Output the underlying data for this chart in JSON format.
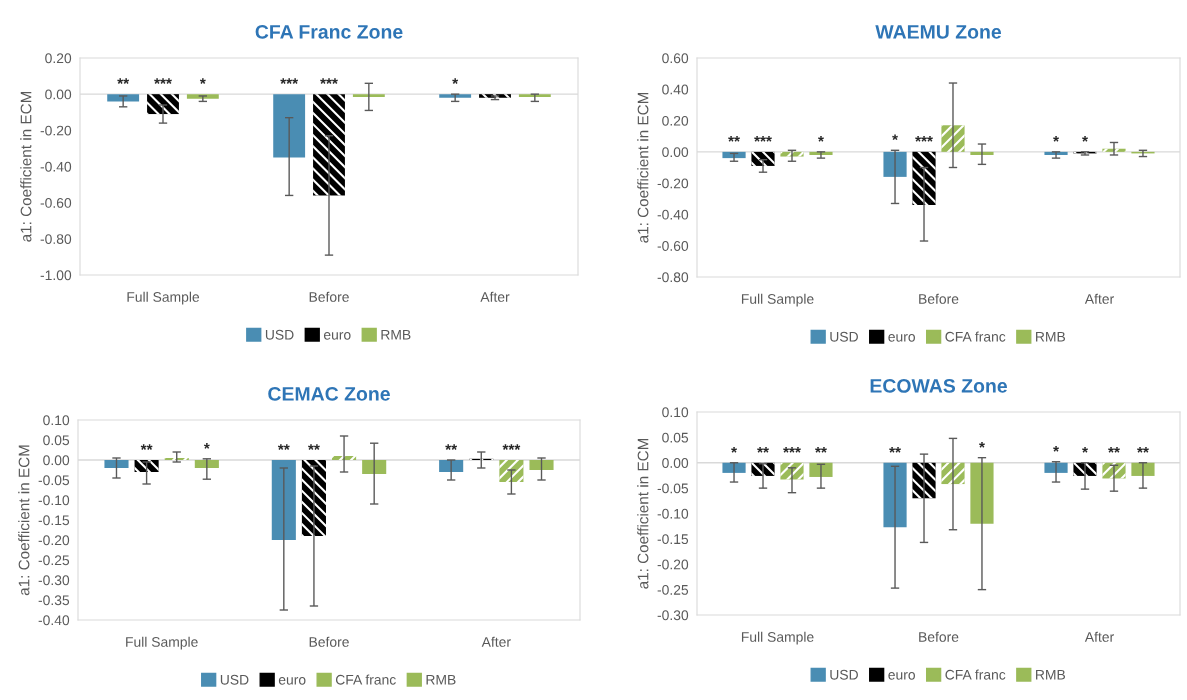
{
  "chart_data": [
    {
      "type": "bar",
      "title": "CFA Franc Zone",
      "ylabel": "a1: Coefficient in ECM",
      "categories": [
        "Full Sample",
        "Before",
        "After"
      ],
      "legend": "bottom",
      "ylim": [
        -1.0,
        0.2
      ],
      "yticks": [
        {
          "value": 0.2,
          "label": "0.20"
        },
        {
          "value": 0,
          "label": "0.00"
        },
        {
          "value": -0.2,
          "label": "-0.20"
        },
        {
          "value": -0.4,
          "label": "-0.40"
        },
        {
          "value": -0.6,
          "label": "-0.60"
        },
        {
          "value": -0.8,
          "label": "-0.80"
        },
        {
          "value": -1.0,
          "label": "-1.00"
        }
      ],
      "ref_lines": [
        {
          "axis": "y",
          "value": 0,
          "color": "#d9d9d9"
        }
      ],
      "series": [
        {
          "name": "USD",
          "color": "#4a8db3",
          "values": [
            -0.04,
            -0.35,
            -0.02
          ],
          "errors": [
            [
              -0.07,
              -0.01
            ],
            [
              -0.56,
              -0.13
            ],
            [
              -0.04,
              0.0
            ]
          ],
          "value_labels": [
            "**",
            "***",
            "*"
          ]
        },
        {
          "name": "euro",
          "color": "#000000",
          "values": [
            -0.11,
            -0.56,
            -0.02
          ],
          "errors": [
            [
              -0.16,
              -0.06
            ],
            [
              -0.89,
              -0.23
            ],
            [
              -0.03,
              -0.01
            ]
          ],
          "value_labels": [
            "***",
            "***",
            null
          ]
        },
        {
          "name": "RMB",
          "color": "#9bbb59",
          "values": [
            -0.025,
            -0.015,
            -0.015
          ],
          "errors": [
            [
              -0.04,
              -0.01
            ],
            [
              -0.09,
              0.06
            ],
            [
              -0.04,
              0.0
            ]
          ],
          "value_labels": [
            "*",
            null,
            null
          ]
        }
      ]
    },
    {
      "type": "bar",
      "title": "WAEMU Zone",
      "ylabel": "a1: Coefficient in ECM",
      "categories": [
        "Full Sample",
        "Before",
        "After"
      ],
      "legend": "bottom",
      "ylim": [
        -0.8,
        0.6
      ],
      "yticks": [
        {
          "value": 0.6,
          "label": "0.60"
        },
        {
          "value": 0.4,
          "label": "0.40"
        },
        {
          "value": 0.2,
          "label": "0.20"
        },
        {
          "value": 0,
          "label": "0.00"
        },
        {
          "value": -0.2,
          "label": "-0.20"
        },
        {
          "value": -0.4,
          "label": "-0.40"
        },
        {
          "value": -0.6,
          "label": "-0.60"
        },
        {
          "value": -0.8,
          "label": "-0.80"
        }
      ],
      "ref_lines": [
        {
          "axis": "y",
          "value": 0,
          "color": "#d9d9d9"
        }
      ],
      "series": [
        {
          "name": "USD",
          "color": "#4a8db3",
          "values": [
            -0.04,
            -0.16,
            -0.02
          ],
          "errors": [
            [
              -0.06,
              -0.01
            ],
            [
              -0.33,
              0.01
            ],
            [
              -0.04,
              0.0
            ]
          ],
          "value_labels": [
            "**",
            "*",
            "*"
          ]
        },
        {
          "name": "euro",
          "color": "#000000",
          "values": [
            -0.09,
            -0.34,
            -0.01
          ],
          "errors": [
            [
              -0.13,
              -0.05
            ],
            [
              -0.57,
              -0.1
            ],
            [
              -0.02,
              0.0
            ]
          ],
          "value_labels": [
            "***",
            "***",
            "*"
          ]
        },
        {
          "name": "CFA franc",
          "color": "#9bbb59",
          "values": [
            -0.03,
            0.17,
            0.02
          ],
          "errors": [
            [
              -0.06,
              0.01
            ],
            [
              -0.1,
              0.44
            ],
            [
              -0.02,
              0.06
            ]
          ],
          "value_labels": [
            null,
            null,
            null
          ]
        },
        {
          "name": "RMB",
          "color": "#9bbb59",
          "values": [
            -0.02,
            -0.02,
            -0.01
          ],
          "errors": [
            [
              -0.04,
              0.0
            ],
            [
              -0.08,
              0.05
            ],
            [
              -0.03,
              0.01
            ]
          ],
          "value_labels": [
            "*",
            null,
            null
          ]
        }
      ]
    },
    {
      "type": "bar",
      "title": "CEMAC Zone",
      "ylabel": "a1: Coefficient in ECM",
      "categories": [
        "Full Sample",
        "Before",
        "After"
      ],
      "legend": "bottom",
      "ylim": [
        -0.4,
        0.1
      ],
      "yticks": [
        {
          "value": 0.1,
          "label": "0.10"
        },
        {
          "value": 0.05,
          "label": "0.05"
        },
        {
          "value": 0,
          "label": "0.00"
        },
        {
          "value": -0.05,
          "label": "-0.05"
        },
        {
          "value": -0.1,
          "label": "-0.10"
        },
        {
          "value": -0.15,
          "label": "-0.15"
        },
        {
          "value": -0.2,
          "label": "-0.20"
        },
        {
          "value": -0.25,
          "label": "-0.25"
        },
        {
          "value": -0.3,
          "label": "-0.30"
        },
        {
          "value": -0.35,
          "label": "-0.35"
        },
        {
          "value": -0.4,
          "label": "-0.40"
        }
      ],
      "ref_lines": [
        {
          "axis": "y",
          "value": 0,
          "color": "#d9d9d9"
        }
      ],
      "series": [
        {
          "name": "USD",
          "color": "#4a8db3",
          "values": [
            -0.02,
            -0.2,
            -0.03
          ],
          "errors": [
            [
              -0.045,
              0.005
            ],
            [
              -0.375,
              -0.02
            ],
            [
              -0.05,
              0.0
            ]
          ],
          "value_labels": [
            null,
            "**",
            "**"
          ]
        },
        {
          "name": "euro",
          "color": "#000000",
          "values": [
            -0.03,
            -0.19,
            0.003
          ],
          "errors": [
            [
              -0.06,
              -0.005
            ],
            [
              -0.365,
              -0.015
            ],
            [
              -0.02,
              0.02
            ]
          ],
          "value_labels": [
            "**",
            "**",
            null
          ]
        },
        {
          "name": "CFA franc",
          "color": "#9bbb59",
          "values": [
            0.005,
            0.01,
            -0.055
          ],
          "errors": [
            [
              -0.005,
              0.02
            ],
            [
              -0.03,
              0.06
            ],
            [
              -0.085,
              -0.025
            ]
          ],
          "value_labels": [
            null,
            null,
            "***"
          ]
        },
        {
          "name": "RMB",
          "color": "#9bbb59",
          "values": [
            -0.02,
            -0.035,
            -0.025
          ],
          "errors": [
            [
              -0.048,
              0.003
            ],
            [
              -0.11,
              0.042
            ],
            [
              -0.05,
              0.005
            ]
          ],
          "value_labels": [
            "*",
            null,
            null
          ]
        }
      ]
    },
    {
      "type": "bar",
      "title": "ECOWAS Zone",
      "ylabel": "a1: Coefficient in ECM",
      "categories": [
        "Full Sample",
        "Before",
        "After"
      ],
      "legend": "bottom",
      "ylim": [
        -0.3,
        0.1
      ],
      "yticks": [
        {
          "value": 0.1,
          "label": "0.10"
        },
        {
          "value": 0.05,
          "label": "0.05"
        },
        {
          "value": 0,
          "label": "0.00"
        },
        {
          "value": -0.05,
          "label": "-0.05"
        },
        {
          "value": -0.1,
          "label": "-0.10"
        },
        {
          "value": -0.15,
          "label": "-0.15"
        },
        {
          "value": -0.2,
          "label": "-0.20"
        },
        {
          "value": -0.25,
          "label": "-0.25"
        },
        {
          "value": -0.3,
          "label": "-0.30"
        }
      ],
      "ref_lines": [
        {
          "axis": "y",
          "value": 0,
          "color": "#d9d9d9"
        }
      ],
      "series": [
        {
          "name": "USD",
          "color": "#4a8db3",
          "values": [
            -0.02,
            -0.127,
            -0.02
          ],
          "errors": [
            [
              -0.038,
              0.0
            ],
            [
              -0.247,
              -0.007
            ],
            [
              -0.038,
              0.002
            ]
          ],
          "value_labels": [
            "*",
            "**",
            "*"
          ]
        },
        {
          "name": "euro",
          "color": "#000000",
          "values": [
            -0.026,
            -0.07,
            -0.026
          ],
          "errors": [
            [
              -0.05,
              -0.002
            ],
            [
              -0.157,
              0.017
            ],
            [
              -0.052,
              0.0
            ]
          ],
          "value_labels": [
            "**",
            null,
            "*"
          ]
        },
        {
          "name": "CFA franc",
          "color": "#9bbb59",
          "values": [
            -0.033,
            -0.042,
            -0.031
          ],
          "errors": [
            [
              -0.059,
              -0.01
            ],
            [
              -0.132,
              0.048
            ],
            [
              -0.056,
              -0.005
            ]
          ],
          "value_labels": [
            "***",
            null,
            "**"
          ]
        },
        {
          "name": "RMB",
          "color": "#9bbb59",
          "values": [
            -0.028,
            -0.12,
            -0.026
          ],
          "errors": [
            [
              -0.05,
              -0.003
            ],
            [
              -0.25,
              0.01
            ],
            [
              -0.05,
              0.0
            ]
          ],
          "value_labels": [
            "**",
            "*",
            "**"
          ]
        }
      ]
    }
  ]
}
